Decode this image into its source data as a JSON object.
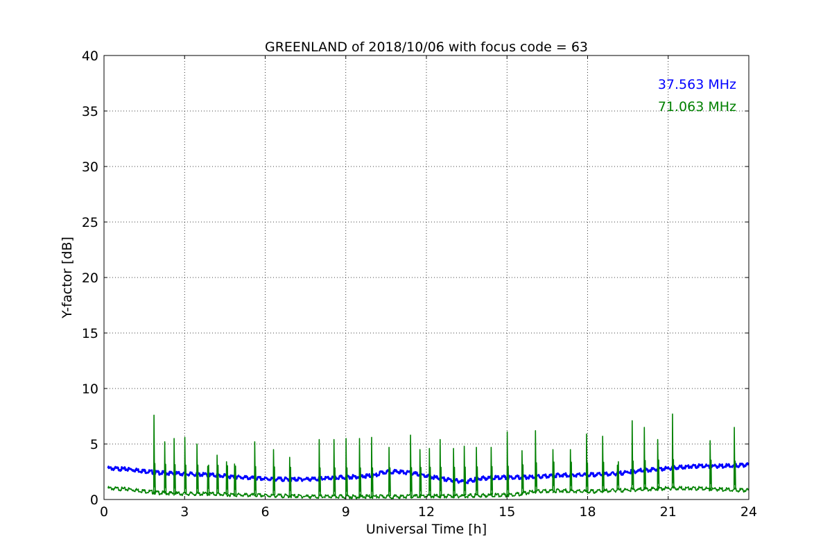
{
  "chart_data": {
    "type": "line",
    "title": "GREENLAND of 2018/10/06 with focus code = 63",
    "xlabel": "Universal Time [h]",
    "ylabel": "Y-factor [dB]",
    "xlim": [
      0,
      24
    ],
    "ylim": [
      0,
      40
    ],
    "xticks": [
      0,
      3,
      6,
      9,
      12,
      15,
      18,
      21,
      24
    ],
    "yticks": [
      0,
      5,
      10,
      15,
      20,
      25,
      30,
      35,
      40
    ],
    "grid": true,
    "legend_position": "top-right",
    "series": [
      {
        "name": "37.563 MHz",
        "color": "#0000ff",
        "x": [
          0.15,
          1.0,
          2.0,
          3.0,
          4.0,
          5.0,
          5.6,
          6.0,
          7.0,
          8.0,
          9.0,
          9.8,
          10.2,
          10.25,
          10.6,
          11.0,
          11.6,
          12.0,
          12.5,
          13.0,
          13.5,
          14.0,
          15.0,
          16.0,
          17.0,
          18.0,
          19.0,
          20.0,
          21.0,
          22.0,
          23.0,
          24.0
        ],
        "y": [
          2.9,
          2.8,
          2.5,
          2.4,
          2.3,
          2.1,
          2.0,
          1.95,
          1.9,
          1.95,
          2.1,
          2.2,
          2.3,
          2.45,
          2.6,
          2.6,
          2.4,
          2.2,
          2.0,
          1.8,
          1.7,
          2.0,
          2.1,
          2.1,
          2.3,
          2.3,
          2.4,
          2.7,
          2.9,
          3.1,
          3.1,
          3.2
        ]
      },
      {
        "name": "71.063 MHz",
        "color": "#008000",
        "x": [
          0.15,
          1.0,
          2.0,
          3.0,
          4.0,
          5.0,
          6.0,
          7.0,
          8.0,
          9.0,
          10.0,
          11.0,
          12.0,
          13.0,
          14.0,
          15.0,
          15.5,
          16.0,
          17.0,
          18.0,
          19.0,
          20.0,
          21.0,
          22.0,
          23.0,
          24.0
        ],
        "y": [
          1.1,
          1.0,
          0.7,
          0.6,
          0.6,
          0.5,
          0.45,
          0.4,
          0.35,
          0.35,
          0.35,
          0.35,
          0.4,
          0.4,
          0.45,
          0.5,
          0.6,
          0.8,
          0.9,
          0.8,
          0.9,
          1.0,
          1.1,
          1.1,
          1.0,
          0.9
        ]
      }
    ],
    "spikes": {
      "series": "71.063 MHz",
      "x": [
        1.85,
        2.25,
        2.6,
        3.0,
        3.45,
        3.85,
        4.2,
        4.55,
        4.85,
        5.6,
        6.3,
        6.9,
        8.0,
        8.55,
        9.0,
        9.5,
        9.95,
        10.6,
        11.4,
        11.75,
        12.1,
        12.5,
        13.0,
        13.4,
        13.85,
        14.4,
        15.0,
        15.55,
        16.05,
        16.7,
        17.35,
        17.95,
        18.55,
        19.1,
        19.65,
        20.1,
        20.6,
        21.15,
        22.55,
        23.45
      ],
      "y": [
        7.6,
        5.2,
        5.5,
        5.6,
        5.0,
        3.0,
        4.0,
        3.4,
        3.2,
        5.2,
        4.5,
        3.8,
        5.4,
        5.4,
        5.5,
        5.5,
        5.6,
        4.7,
        5.8,
        4.5,
        4.6,
        5.4,
        4.6,
        4.8,
        4.7,
        4.7,
        6.1,
        4.4,
        6.2,
        4.5,
        4.5,
        5.9,
        5.7,
        3.1,
        7.1,
        6.5,
        5.4,
        7.7,
        5.3,
        6.5
      ]
    }
  }
}
